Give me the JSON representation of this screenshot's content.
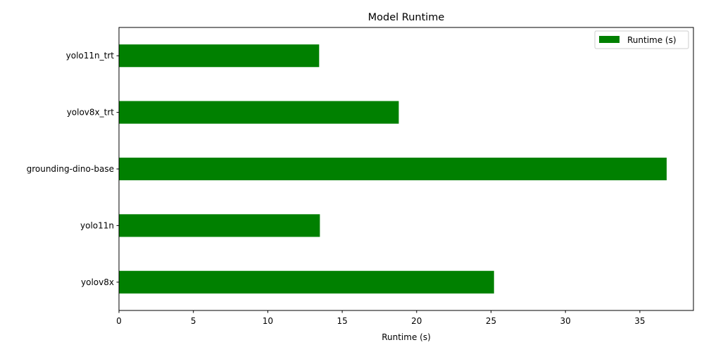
{
  "chart_data": {
    "type": "bar",
    "orientation": "horizontal",
    "title": "Model Runtime",
    "xlabel": "Runtime (s)",
    "ylabel": "",
    "categories": [
      "yolov8x",
      "yolo11n",
      "grounding-dino-base",
      "yolov8x_trt",
      "yolo11n_trt"
    ],
    "series": [
      {
        "name": "Runtime (s)",
        "values": [
          25.2,
          13.5,
          36.8,
          18.8,
          13.45
        ]
      }
    ],
    "xlim": [
      0,
      38.6
    ],
    "xticks": [
      0,
      5,
      10,
      15,
      20,
      25,
      30,
      35
    ],
    "grid": false,
    "legend": "top-right",
    "bar_color": "#008000"
  }
}
